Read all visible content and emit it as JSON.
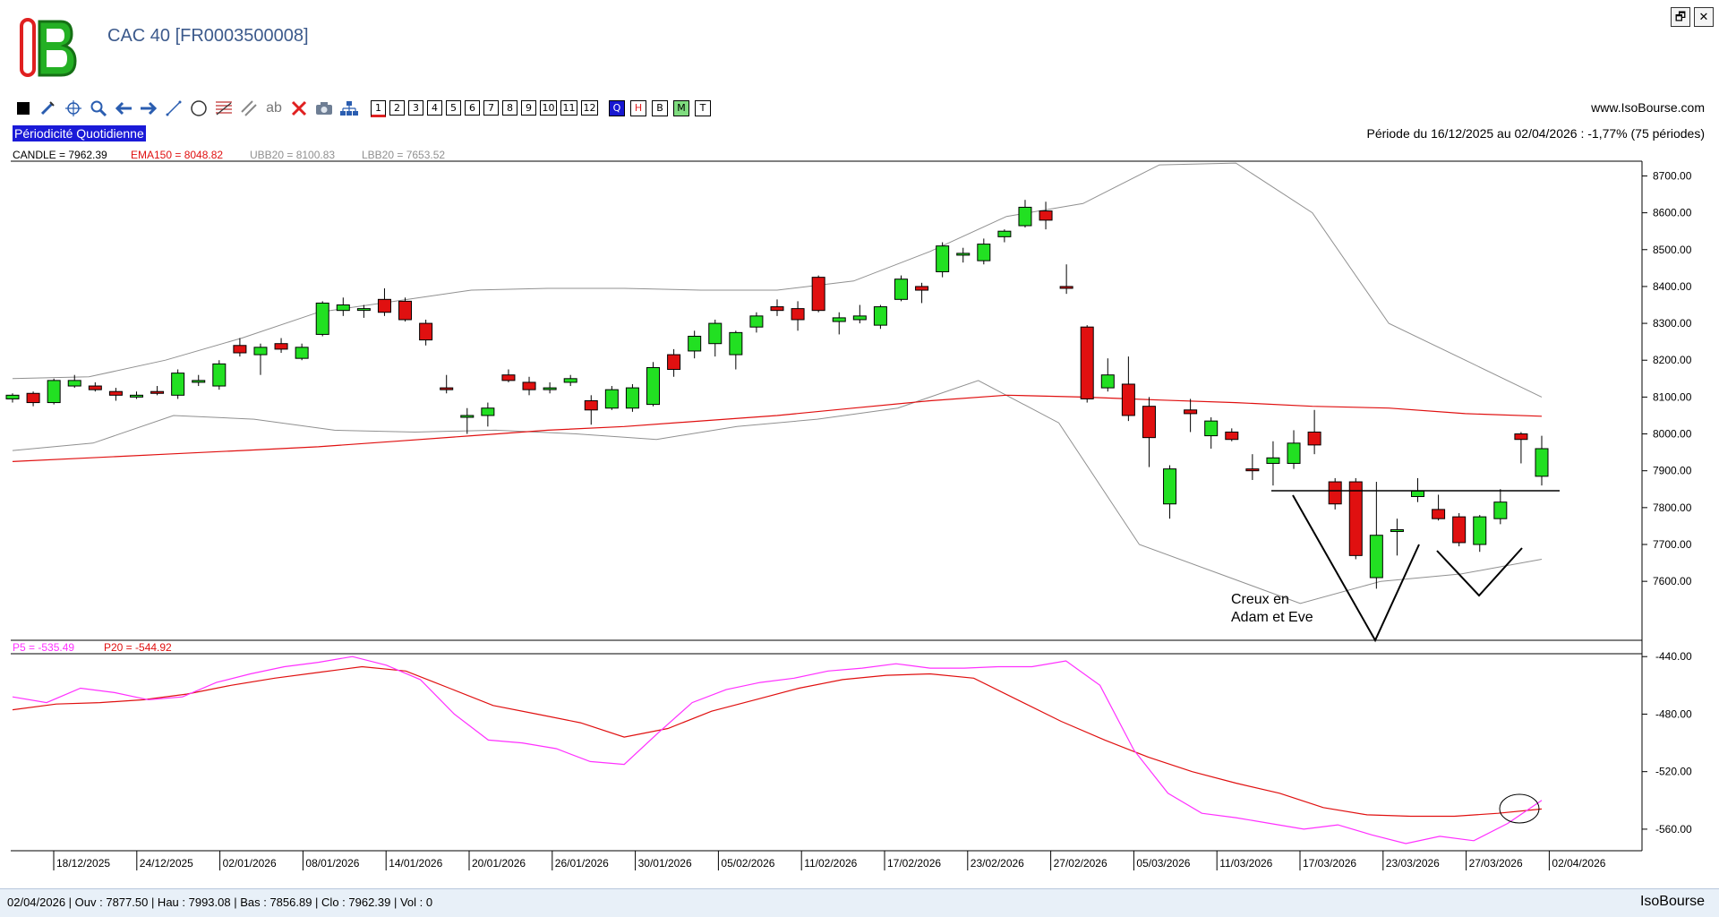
{
  "window": {
    "title": "CAC 40 [FR0003500008]",
    "restore_label": "🗗",
    "close_label": "✕",
    "logo_text": "IB"
  },
  "toolbar": {
    "tools": [
      "select-tool",
      "draw-tool",
      "crosshair-tool",
      "zoom-tool",
      "back-tool",
      "forward-tool",
      "line-tool",
      "circle-tool",
      "fibonacci-tool",
      "channel-tool",
      "text-tool",
      "delete-tool",
      "snapshot-tool",
      "hierarchy-tool"
    ],
    "text_tool_label": "ab",
    "periods": [
      "1",
      "2",
      "3",
      "4",
      "5",
      "6",
      "7",
      "8",
      "9",
      "10",
      "11",
      "12"
    ],
    "selected_period": "1",
    "modes": [
      {
        "label": "Q",
        "bg": "#1818d0",
        "fg": "#ffffff"
      },
      {
        "label": "H",
        "bg": "#ffffff",
        "fg": "#e02020"
      },
      {
        "label": "B",
        "bg": "#ffffff",
        "fg": "#000000"
      },
      {
        "label": "M",
        "bg": "#7fdc7f",
        "fg": "#000000"
      },
      {
        "label": "T",
        "bg": "#ffffff",
        "fg": "#000000"
      }
    ]
  },
  "website": "www.IsoBourse.com",
  "periodicity": "Périodicité Quotidienne",
  "period_info": "Période du 16/12/2025 au 02/04/2026 : -1,77% (75 périodes)",
  "legend_top": {
    "candle": "CANDLE = 7962.39",
    "ema": "EMA150 = 8048.82",
    "ubb": "UBB20 = 8100.83",
    "lbb": "LBB20 = 7653.52"
  },
  "legend_bottom": {
    "p5": "P5 = -535.49",
    "p20": "P20 = -544.92"
  },
  "annotation": {
    "line1": "Creux en",
    "line2": "Adam et Eve"
  },
  "colors": {
    "up": "#22e022",
    "down": "#e01010",
    "ema": "#e01010",
    "bollinger": "#909090",
    "p5": "#ff30ff",
    "p20": "#e01010"
  },
  "status": {
    "text": "02/04/2026 | Ouv : 7877.50 | Hau : 7993.08 | Bas : 7856.89 | Clo : 7962.39 | Vol : 0",
    "brand": "IsoBourse"
  },
  "chart_data": [
    {
      "type": "candlestick",
      "y_ticks": [
        "8700.00",
        "8600.00",
        "8500.00",
        "8400.00",
        "8300.00",
        "8200.00",
        "8100.00",
        "8000.00",
        "7900.00",
        "7800.00",
        "7700.00",
        "7600.00"
      ],
      "ylim": [
        7440,
        8740
      ],
      "x_ticks": [
        "18/12/2025",
        "24/12/2025",
        "02/01/2026",
        "08/01/2026",
        "14/01/2026",
        "20/01/2026",
        "26/01/2026",
        "30/01/2026",
        "05/02/2026",
        "11/02/2026",
        "17/02/2026",
        "23/02/2026",
        "27/02/2026",
        "05/03/2026",
        "11/03/2026",
        "17/03/2026",
        "23/03/2026",
        "27/03/2026",
        "02/04/2026"
      ],
      "ohlc": [
        [
          8095,
          8110,
          8085,
          8105
        ],
        [
          8110,
          8115,
          8075,
          8085
        ],
        [
          8085,
          8150,
          8080,
          8145
        ],
        [
          8130,
          8160,
          8125,
          8145
        ],
        [
          8130,
          8140,
          8115,
          8120
        ],
        [
          8115,
          8125,
          8090,
          8105
        ],
        [
          8100,
          8115,
          8095,
          8105
        ],
        [
          8115,
          8130,
          8105,
          8110
        ],
        [
          8105,
          8175,
          8095,
          8165
        ],
        [
          8140,
          8160,
          8130,
          8145
        ],
        [
          8130,
          8200,
          8120,
          8190
        ],
        [
          8240,
          8260,
          8210,
          8220
        ],
        [
          8215,
          8245,
          8160,
          8235
        ],
        [
          8245,
          8260,
          8220,
          8230
        ],
        [
          8205,
          8245,
          8200,
          8235
        ],
        [
          8270,
          8360,
          8265,
          8355
        ],
        [
          8335,
          8370,
          8320,
          8350
        ],
        [
          8340,
          8350,
          8315,
          8340
        ],
        [
          8365,
          8395,
          8320,
          8330
        ],
        [
          8360,
          8370,
          8305,
          8310
        ],
        [
          8300,
          8310,
          8240,
          8255
        ],
        [
          8125,
          8160,
          8110,
          8120
        ],
        [
          8045,
          8070,
          8000,
          8050
        ],
        [
          8050,
          8085,
          8020,
          8070
        ],
        [
          8160,
          8175,
          8140,
          8145
        ],
        [
          8140,
          8155,
          8105,
          8120
        ],
        [
          8125,
          8140,
          8110,
          8125
        ],
        [
          8140,
          8160,
          8130,
          8150
        ],
        [
          8090,
          8105,
          8025,
          8065
        ],
        [
          8070,
          8130,
          8065,
          8120
        ],
        [
          8070,
          8135,
          8060,
          8125
        ],
        [
          8080,
          8195,
          8075,
          8180
        ],
        [
          8215,
          8230,
          8155,
          8175
        ],
        [
          8225,
          8280,
          8205,
          8265
        ],
        [
          8245,
          8310,
          8210,
          8300
        ],
        [
          8215,
          8280,
          8175,
          8275
        ],
        [
          8290,
          8330,
          8275,
          8320
        ],
        [
          8345,
          8365,
          8320,
          8335
        ],
        [
          8340,
          8360,
          8280,
          8310
        ],
        [
          8425,
          8430,
          8330,
          8335
        ],
        [
          8305,
          8330,
          8270,
          8315
        ],
        [
          8310,
          8350,
          8300,
          8320
        ],
        [
          8295,
          8350,
          8285,
          8345
        ],
        [
          8365,
          8430,
          8360,
          8420
        ],
        [
          8400,
          8410,
          8355,
          8390
        ],
        [
          8440,
          8520,
          8425,
          8510
        ],
        [
          8485,
          8505,
          8465,
          8490
        ],
        [
          8470,
          8530,
          8460,
          8515
        ],
        [
          8535,
          8555,
          8520,
          8550
        ],
        [
          8565,
          8635,
          8560,
          8615
        ],
        [
          8605,
          8630,
          8555,
          8580
        ],
        [
          8400,
          8460,
          8380,
          8395
        ],
        [
          8290,
          8295,
          8085,
          8095
        ],
        [
          8125,
          8205,
          8115,
          8160
        ],
        [
          8135,
          8210,
          8035,
          8050
        ],
        [
          8075,
          8100,
          7910,
          7990
        ],
        [
          7810,
          7915,
          7770,
          7905
        ],
        [
          8065,
          8095,
          8005,
          8055
        ],
        [
          7995,
          8045,
          7960,
          8035
        ],
        [
          8005,
          8015,
          7980,
          7985
        ],
        [
          7905,
          7945,
          7875,
          7900
        ],
        [
          7920,
          7980,
          7860,
          7935
        ],
        [
          7920,
          8010,
          7905,
          7975
        ],
        [
          8005,
          8065,
          7945,
          7970
        ],
        [
          7870,
          7880,
          7795,
          7810
        ],
        [
          7870,
          7880,
          7660,
          7670
        ],
        [
          7610,
          7870,
          7580,
          7725
        ],
        [
          7740,
          7770,
          7670,
          7740
        ],
        [
          7830,
          7880,
          7815,
          7845
        ],
        [
          7795,
          7835,
          7765,
          7770
        ],
        [
          7775,
          7785,
          7695,
          7705
        ],
        [
          7700,
          7780,
          7680,
          7775
        ],
        [
          7770,
          7850,
          7755,
          7815
        ],
        [
          8000,
          8005,
          7920,
          7985
        ],
        [
          7885,
          7995,
          7860,
          7960
        ]
      ],
      "ema150": [
        7925,
        7935,
        7945,
        7955,
        7965,
        7980,
        7995,
        8010,
        8020,
        8035,
        8050,
        8070,
        8090,
        8105,
        8100,
        8092,
        8085,
        8075,
        8070,
        8055,
        8048
      ],
      "ubb20": [
        8150,
        8155,
        8200,
        8260,
        8330,
        8360,
        8390,
        8395,
        8395,
        8390,
        8390,
        8415,
        8495,
        8590,
        8625,
        8730,
        8735,
        8600,
        8300,
        8200,
        8100
      ],
      "lbb20": [
        7955,
        7975,
        8050,
        8040,
        8010,
        8005,
        8010,
        8000,
        7985,
        8020,
        8040,
        8070,
        8145,
        8030,
        7700,
        7620,
        7540,
        7600,
        7620,
        7660
      ],
      "annotation_text": "Creux en Adam et Eve",
      "neckline": 7885
    },
    {
      "type": "line",
      "y_ticks": [
        "-440.00",
        "-480.00",
        "-520.00",
        "-560.00"
      ],
      "ylim": [
        -575,
        -438
      ],
      "series": [
        {
          "name": "P5",
          "values": [
            -468,
            -472,
            -462,
            -465,
            -470,
            -468,
            -458,
            -452,
            -447,
            -444,
            -440,
            -446,
            -456,
            -480,
            -498,
            -500,
            -504,
            -513,
            -515,
            -493,
            -472,
            -463,
            -458,
            -455,
            -450,
            -448,
            -445,
            -448,
            -448,
            -447,
            -447,
            -443,
            -460,
            -505,
            -535,
            -549,
            -552,
            -556,
            -560,
            -557,
            -564,
            -570,
            -565,
            -568,
            -556,
            -540
          ]
        },
        {
          "name": "P20",
          "values": [
            -477,
            -473,
            -472,
            -470,
            -466,
            -460,
            -455,
            -451,
            -447,
            -450,
            -462,
            -474,
            -480,
            -486,
            -496,
            -490,
            -478,
            -470,
            -462,
            -456,
            -453,
            -452,
            -455,
            -470,
            -485,
            -498,
            -510,
            -520,
            -528,
            -535,
            -545,
            -550,
            -551,
            -551,
            -549,
            -546
          ]
        }
      ]
    }
  ]
}
